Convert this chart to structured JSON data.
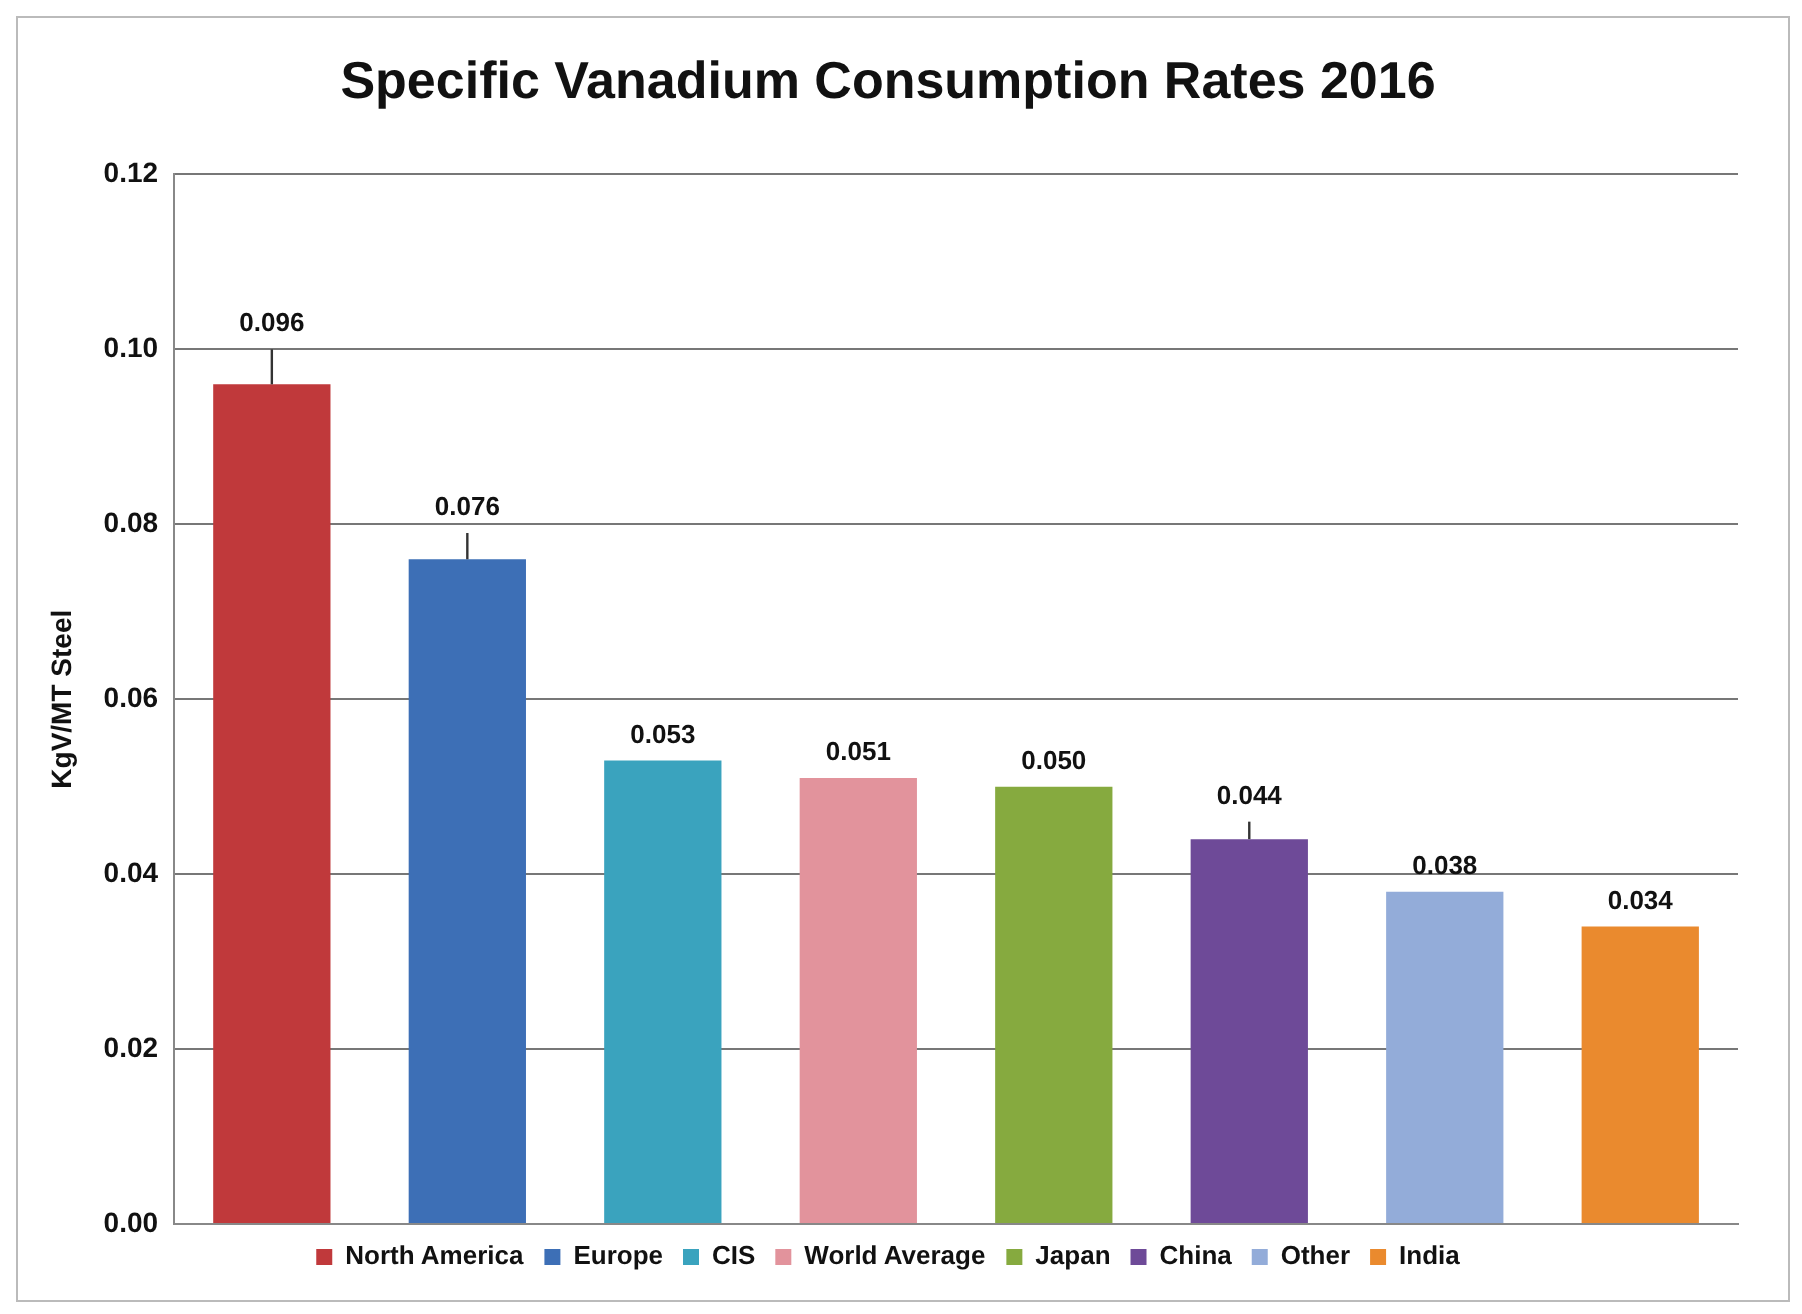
{
  "chart_data": {
    "type": "bar",
    "title": "Specific Vanadium Consumption Rates 2016",
    "ylabel": "KgV/MT Steel",
    "categories": [
      null,
      null,
      null,
      null,
      null,
      null,
      null,
      null
    ],
    "series": [
      {
        "name": "North America",
        "color": "#c0393b",
        "values": [
          0.096,
          null,
          null,
          null,
          null,
          null,
          null,
          null
        ],
        "value_labels": [
          "0.096",
          null,
          null,
          null,
          null,
          null,
          null,
          null
        ],
        "errors": [
          [
            0.096,
            0.1
          ],
          null,
          null,
          null,
          null,
          null,
          null,
          null
        ]
      },
      {
        "name": "Europe",
        "color": "#3d6fb6",
        "values": [
          null,
          0.076,
          null,
          null,
          null,
          null,
          null,
          null
        ],
        "value_labels": [
          null,
          "0.076",
          null,
          null,
          null,
          null,
          null,
          null
        ],
        "errors": [
          null,
          [
            0.076,
            0.079
          ],
          null,
          null,
          null,
          null,
          null,
          null
        ]
      },
      {
        "name": "CIS",
        "color": "#3aa3be",
        "values": [
          null,
          null,
          0.053,
          null,
          null,
          null,
          null,
          null
        ],
        "value_labels": [
          null,
          null,
          "0.053",
          null,
          null,
          null,
          null,
          null
        ]
      },
      {
        "name": "World Average",
        "color": "#e2939c",
        "values": [
          null,
          null,
          null,
          0.051,
          null,
          null,
          null,
          null
        ],
        "value_labels": [
          null,
          null,
          null,
          "0.051",
          null,
          null,
          null,
          null
        ]
      },
      {
        "name": "Japan",
        "color": "#86aa3f",
        "values": [
          null,
          null,
          null,
          null,
          0.05,
          null,
          null,
          null
        ],
        "value_labels": [
          null,
          null,
          null,
          null,
          "0.050",
          null,
          null,
          null
        ]
      },
      {
        "name": "China",
        "color": "#6e4a98",
        "values": [
          null,
          null,
          null,
          null,
          null,
          0.044,
          null,
          null
        ],
        "value_labels": [
          null,
          null,
          null,
          null,
          null,
          "0.044",
          null,
          null
        ],
        "errors": [
          null,
          null,
          null,
          null,
          null,
          [
            0.044,
            0.046
          ],
          null,
          null
        ]
      },
      {
        "name": "Other",
        "color": "#93acd9",
        "values": [
          null,
          null,
          null,
          null,
          null,
          null,
          0.038,
          null
        ],
        "value_labels": [
          null,
          null,
          null,
          null,
          null,
          null,
          "0.038",
          null
        ]
      },
      {
        "name": "India",
        "color": "#ea8a2e",
        "values": [
          null,
          null,
          null,
          null,
          null,
          null,
          null,
          0.034
        ],
        "value_labels": [
          null,
          null,
          null,
          null,
          null,
          null,
          null,
          "0.034"
        ]
      }
    ],
    "ylim": [
      0,
      0.12
    ],
    "yticks": [
      {
        "value": 0,
        "label": "0.00"
      },
      {
        "value": 0.02,
        "label": "0.02"
      },
      {
        "value": 0.04,
        "label": "0.04"
      },
      {
        "value": 0.06,
        "label": "0.06"
      },
      {
        "value": 0.08,
        "label": "0.08"
      },
      {
        "value": 0.1,
        "label": "0.10"
      },
      {
        "value": 0.12,
        "label": "0.12"
      }
    ],
    "grid": "y",
    "legend": "bottom",
    "tick_labels": "y"
  }
}
